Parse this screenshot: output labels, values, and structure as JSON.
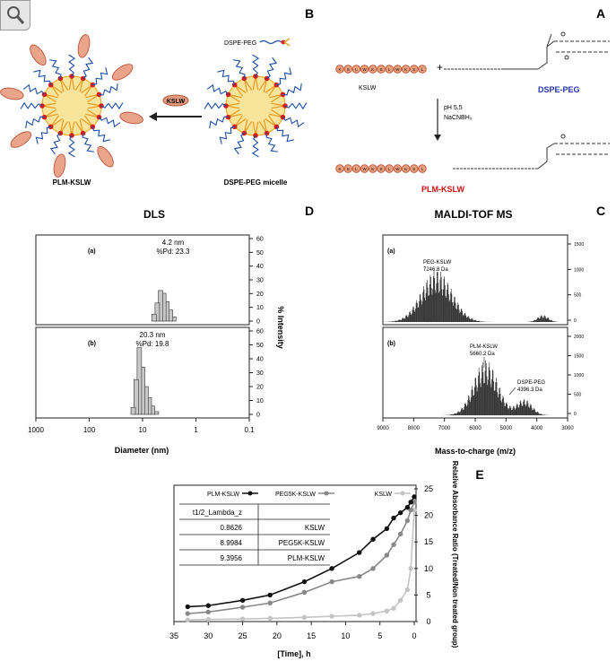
{
  "panels": {
    "A": "A",
    "B": "B",
    "C": "C",
    "D": "D",
    "E": "E"
  },
  "schemeA": {
    "peptide_label": "KSLW",
    "lipid_label": "DSPE-PEG",
    "condition1": "pH 5.5",
    "condition2": "NaCNBH₃",
    "product_label": "PLM-KSLW",
    "plus": "+",
    "peptide_residues": [
      "K",
      "S",
      "L",
      "W",
      "K",
      "S",
      "L",
      "W",
      "K",
      "S",
      "L"
    ],
    "lipid_color": "#2233aa",
    "product_color": "#cc1111"
  },
  "schemeB": {
    "reagent_label": "DSPE-PEG",
    "micelle_label": "DSPE-PEG micelle",
    "arrow_label": "KSLW",
    "product_label": "PLM-KSLW"
  },
  "maldi": {
    "title": "MALDI-TOF MS",
    "xlabel": "Mass-to-charge (m/z)",
    "xticks": [
      "3000",
      "4000",
      "5000",
      "6000",
      "7000",
      "8000",
      "9000"
    ],
    "a_label": "(a)",
    "a_peak": "PEG-KSLW",
    "a_peak_value": "7246.8 Da",
    "a_yticks": [
      "0",
      "500",
      "1000",
      "1500"
    ],
    "b_label": "(b)",
    "b_peak": "PLM-KSLW",
    "b_peak_value": "5660.2 Da",
    "b_peak2": "DSPE-PEG",
    "b_peak2_value": "4396.3 Da",
    "b_yticks": [
      "0",
      "500",
      "1000",
      "1500",
      "2000"
    ]
  },
  "dls": {
    "title": "DLS",
    "xlabel": "Diameter (nm)",
    "ylabel": "% Intensity",
    "xticks": [
      "0.1",
      "1",
      "10",
      "100",
      "1000"
    ],
    "yticks": [
      "0",
      "10",
      "20",
      "30",
      "40",
      "50",
      "60"
    ],
    "a_label": "(a)",
    "a_size": "4.2 nm",
    "a_pd": "%Pd: 23.3",
    "b_label": "(b)",
    "b_size": "20.3 nm",
    "b_pd": "%Pd: 19.8"
  },
  "table": {
    "header": [
      "",
      "t1/2_Lambda_z"
    ],
    "rows": [
      [
        "KSLW",
        "0.8626"
      ],
      [
        "PEG5K-KSLW",
        "8.9984"
      ],
      [
        "PLM-KSLW",
        "9.3956"
      ]
    ]
  },
  "chart_data": {
    "type": "line",
    "xlabel": "[Time], h",
    "ylabel": "Relative Absorbance Ratio (Treated/Non treated group)",
    "xlim": [
      0,
      35
    ],
    "ylim": [
      0,
      25
    ],
    "xticks": [
      "0",
      "5",
      "10",
      "15",
      "20",
      "25",
      "30",
      "35"
    ],
    "yticks": [
      "0",
      "5",
      "10",
      "15",
      "20",
      "25"
    ],
    "series": [
      {
        "name": "KSLW",
        "color": "#c4c4c4",
        "points": [
          [
            0,
            21
          ],
          [
            0.5,
            10
          ],
          [
            1,
            6
          ],
          [
            2,
            4
          ],
          [
            3,
            2.5
          ],
          [
            4,
            2
          ],
          [
            6,
            1.5
          ],
          [
            8,
            1.2
          ],
          [
            12,
            1
          ],
          [
            16,
            0.8
          ],
          [
            21,
            0.6
          ],
          [
            25,
            0.5
          ],
          [
            30,
            0.4
          ],
          [
            33,
            0.3
          ]
        ]
      },
      {
        "name": "PEG5K-KSLW",
        "color": "#888888",
        "points": [
          [
            0,
            22.5
          ],
          [
            0.5,
            21
          ],
          [
            1,
            19
          ],
          [
            2,
            16.5
          ],
          [
            3,
            14.5
          ],
          [
            4,
            12.5
          ],
          [
            6,
            10
          ],
          [
            8,
            8.5
          ],
          [
            12,
            7.5
          ],
          [
            16,
            5.5
          ],
          [
            21,
            3.5
          ],
          [
            25,
            2.7
          ],
          [
            30,
            1.8
          ],
          [
            33,
            1.5
          ]
        ]
      },
      {
        "name": "PLM-KSLW",
        "color": "#111111",
        "points": [
          [
            0,
            23.5
          ],
          [
            0.5,
            22.5
          ],
          [
            1,
            21.5
          ],
          [
            2,
            20.5
          ],
          [
            3,
            19.5
          ],
          [
            4,
            17.5
          ],
          [
            6,
            15.5
          ],
          [
            8,
            13
          ],
          [
            12,
            10
          ],
          [
            16,
            7.5
          ],
          [
            21,
            5
          ],
          [
            25,
            4
          ],
          [
            30,
            3
          ],
          [
            33,
            2.8
          ]
        ]
      }
    ]
  }
}
